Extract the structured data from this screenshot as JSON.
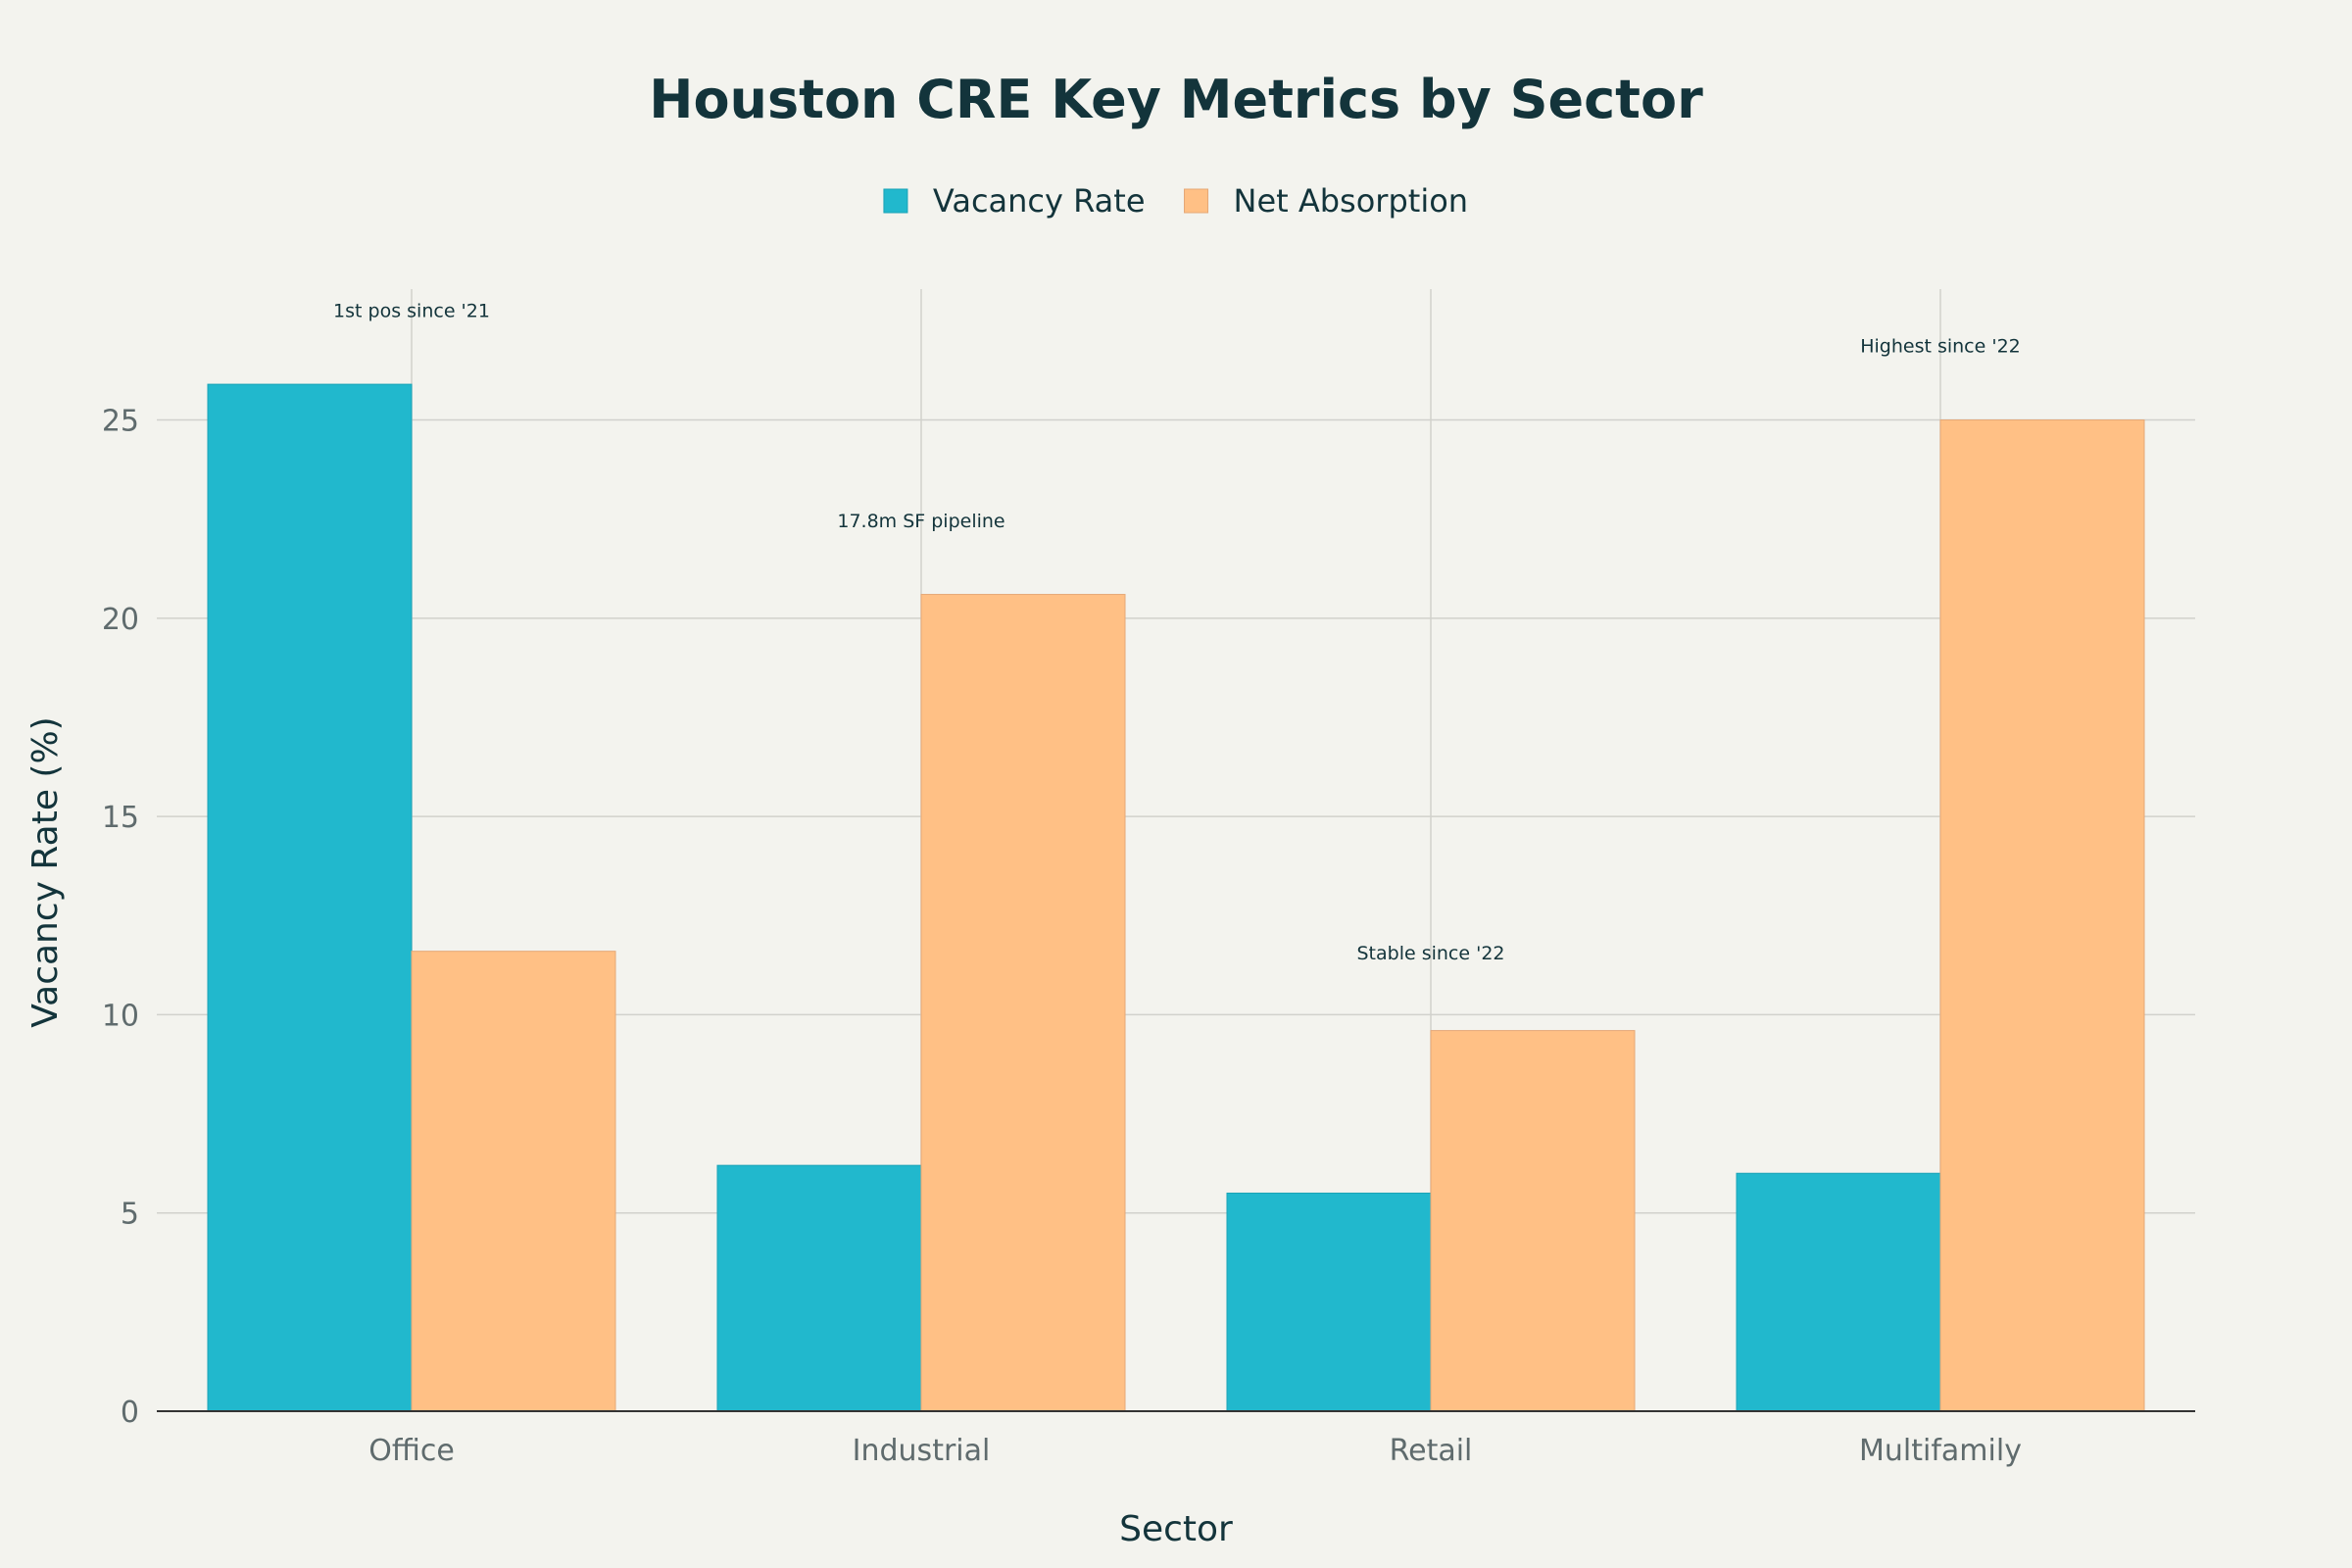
{
  "chart_data": {
    "type": "bar",
    "title": "Houston CRE Key Metrics by Sector",
    "xlabel": "Sector",
    "ylabel": "Vacancy Rate (%)",
    "categories": [
      "Office",
      "Industrial",
      "Retail",
      "Multifamily"
    ],
    "series": [
      {
        "name": "Vacancy Rate",
        "color": "#21b8cd",
        "values": [
          25.9,
          6.2,
          5.5,
          6.0
        ]
      },
      {
        "name": "Net Absorption",
        "color": "#ffc085",
        "values": [
          11.6,
          20.6,
          9.6,
          25.0
        ]
      }
    ],
    "ylim": [
      0,
      28.3
    ],
    "yticks": [
      0,
      5,
      10,
      15,
      20,
      25
    ],
    "grid": true,
    "legend": "top-center",
    "annotations": [
      {
        "category": "Office",
        "text": "1st pos since '21",
        "y": 27.6
      },
      {
        "category": "Industrial",
        "text": "17.8m SF pipeline",
        "y": 22.3
      },
      {
        "category": "Retail",
        "text": "Stable since '22",
        "y": 11.4
      },
      {
        "category": "Multifamily",
        "text": "Highest since '22",
        "y": 26.7
      }
    ]
  }
}
